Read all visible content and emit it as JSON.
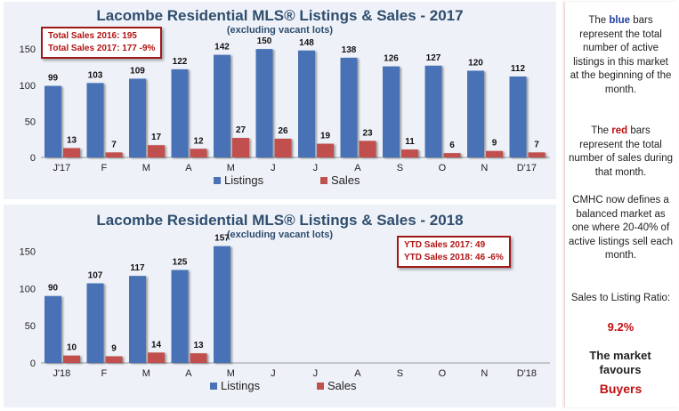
{
  "colors": {
    "listings": "#4a72b6",
    "sales": "#c0504d",
    "title": "#2f4d6e",
    "box_border": "#a01818"
  },
  "chart_data": [
    {
      "type": "bar",
      "title": "Lacombe Residential MLS® Listings & Sales - 2017",
      "subtitle": "(excluding vacant lots)",
      "categories": [
        "J'17",
        "F",
        "M",
        "A",
        "M",
        "J",
        "J",
        "A",
        "S",
        "O",
        "N",
        "D'17"
      ],
      "series": [
        {
          "name": "Listings",
          "values": [
            99,
            103,
            109,
            122,
            142,
            150,
            148,
            138,
            126,
            127,
            120,
            112
          ]
        },
        {
          "name": "Sales",
          "values": [
            13,
            7,
            17,
            12,
            27,
            26,
            19,
            23,
            11,
            6,
            9,
            7
          ]
        }
      ],
      "yticks": [
        0,
        50,
        100,
        150
      ],
      "ylim": [
        0,
        160
      ],
      "legend": "bottom",
      "annotation": [
        "Total Sales 2016: 195",
        "Total Sales 2017: 177 -9%"
      ]
    },
    {
      "type": "bar",
      "title": "Lacombe Residential MLS® Listings & Sales - 2018",
      "subtitle": "(excluding vacant lots)",
      "categories": [
        "J'18",
        "F",
        "M",
        "A",
        "M",
        "J",
        "J",
        "A",
        "S",
        "O",
        "N",
        "D'18"
      ],
      "series": [
        {
          "name": "Listings",
          "values": [
            90,
            107,
            117,
            125,
            157,
            null,
            null,
            null,
            null,
            null,
            null,
            null
          ]
        },
        {
          "name": "Sales",
          "values": [
            10,
            9,
            14,
            13,
            null,
            null,
            null,
            null,
            null,
            null,
            null,
            null
          ]
        }
      ],
      "yticks": [
        0,
        50,
        100,
        150
      ],
      "ylim": [
        0,
        165
      ],
      "legend": "bottom",
      "annotation": [
        "YTD Sales 2017: 49",
        "YTD Sales 2018: 46 -6%"
      ]
    }
  ],
  "sidebar": {
    "p1_a": "The ",
    "p1_blue": "blue",
    "p1_b": " bars represent the total number of active listings in this market at the beginning of the month.",
    "p2_a": "The ",
    "p2_red": "red",
    "p2_b": " bars represent the total number of sales during that month.",
    "p3": "CMHC now defines a balanced market as one where 20-40% of active listings sell each month.",
    "p4": "Sales to Listing Ratio:",
    "ratio": "9.2%",
    "p5": "The market favours",
    "favours": "Buyers"
  }
}
